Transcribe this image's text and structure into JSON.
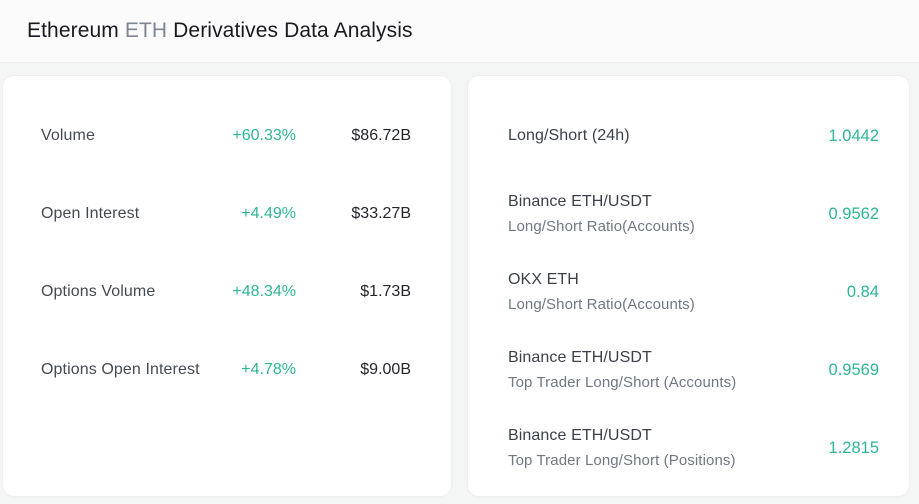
{
  "header": {
    "title": {
      "asset": "Ethereum",
      "symbol": "ETH",
      "rest": "Derivatives Data Analysis"
    }
  },
  "metrics_card": {
    "rows": [
      {
        "label": "Volume",
        "change": "+60.33%",
        "value": "$86.72B"
      },
      {
        "label": "Open Interest",
        "change": "+4.49%",
        "value": "$33.27B"
      },
      {
        "label": "Options Volume",
        "change": "+48.34%",
        "value": "$1.73B"
      },
      {
        "label": "Options Open Interest",
        "change": "+4.78%",
        "value": "$9.00B"
      }
    ]
  },
  "ratios_card": {
    "rows": [
      {
        "label": "Long/Short (24h)",
        "sublabel": "",
        "value": "1.0442"
      },
      {
        "label": "Binance ETH/USDT",
        "sublabel": "Long/Short Ratio(Accounts)",
        "value": "0.9562"
      },
      {
        "label": "OKX ETH",
        "sublabel": "Long/Short Ratio(Accounts)",
        "value": "0.84"
      },
      {
        "label": "Binance ETH/USDT",
        "sublabel": "Top Trader Long/Short (Accounts)",
        "value": "0.9569"
      },
      {
        "label": "Binance ETH/USDT",
        "sublabel": "Top Trader Long/Short (Positions)",
        "value": "1.2815"
      }
    ]
  },
  "colors": {
    "positive": "#2eb597",
    "accent": "#2eb597",
    "background": "#f4f5f5",
    "card": "#ffffff",
    "text_primary": "#23262b",
    "text_secondary": "#707883"
  }
}
